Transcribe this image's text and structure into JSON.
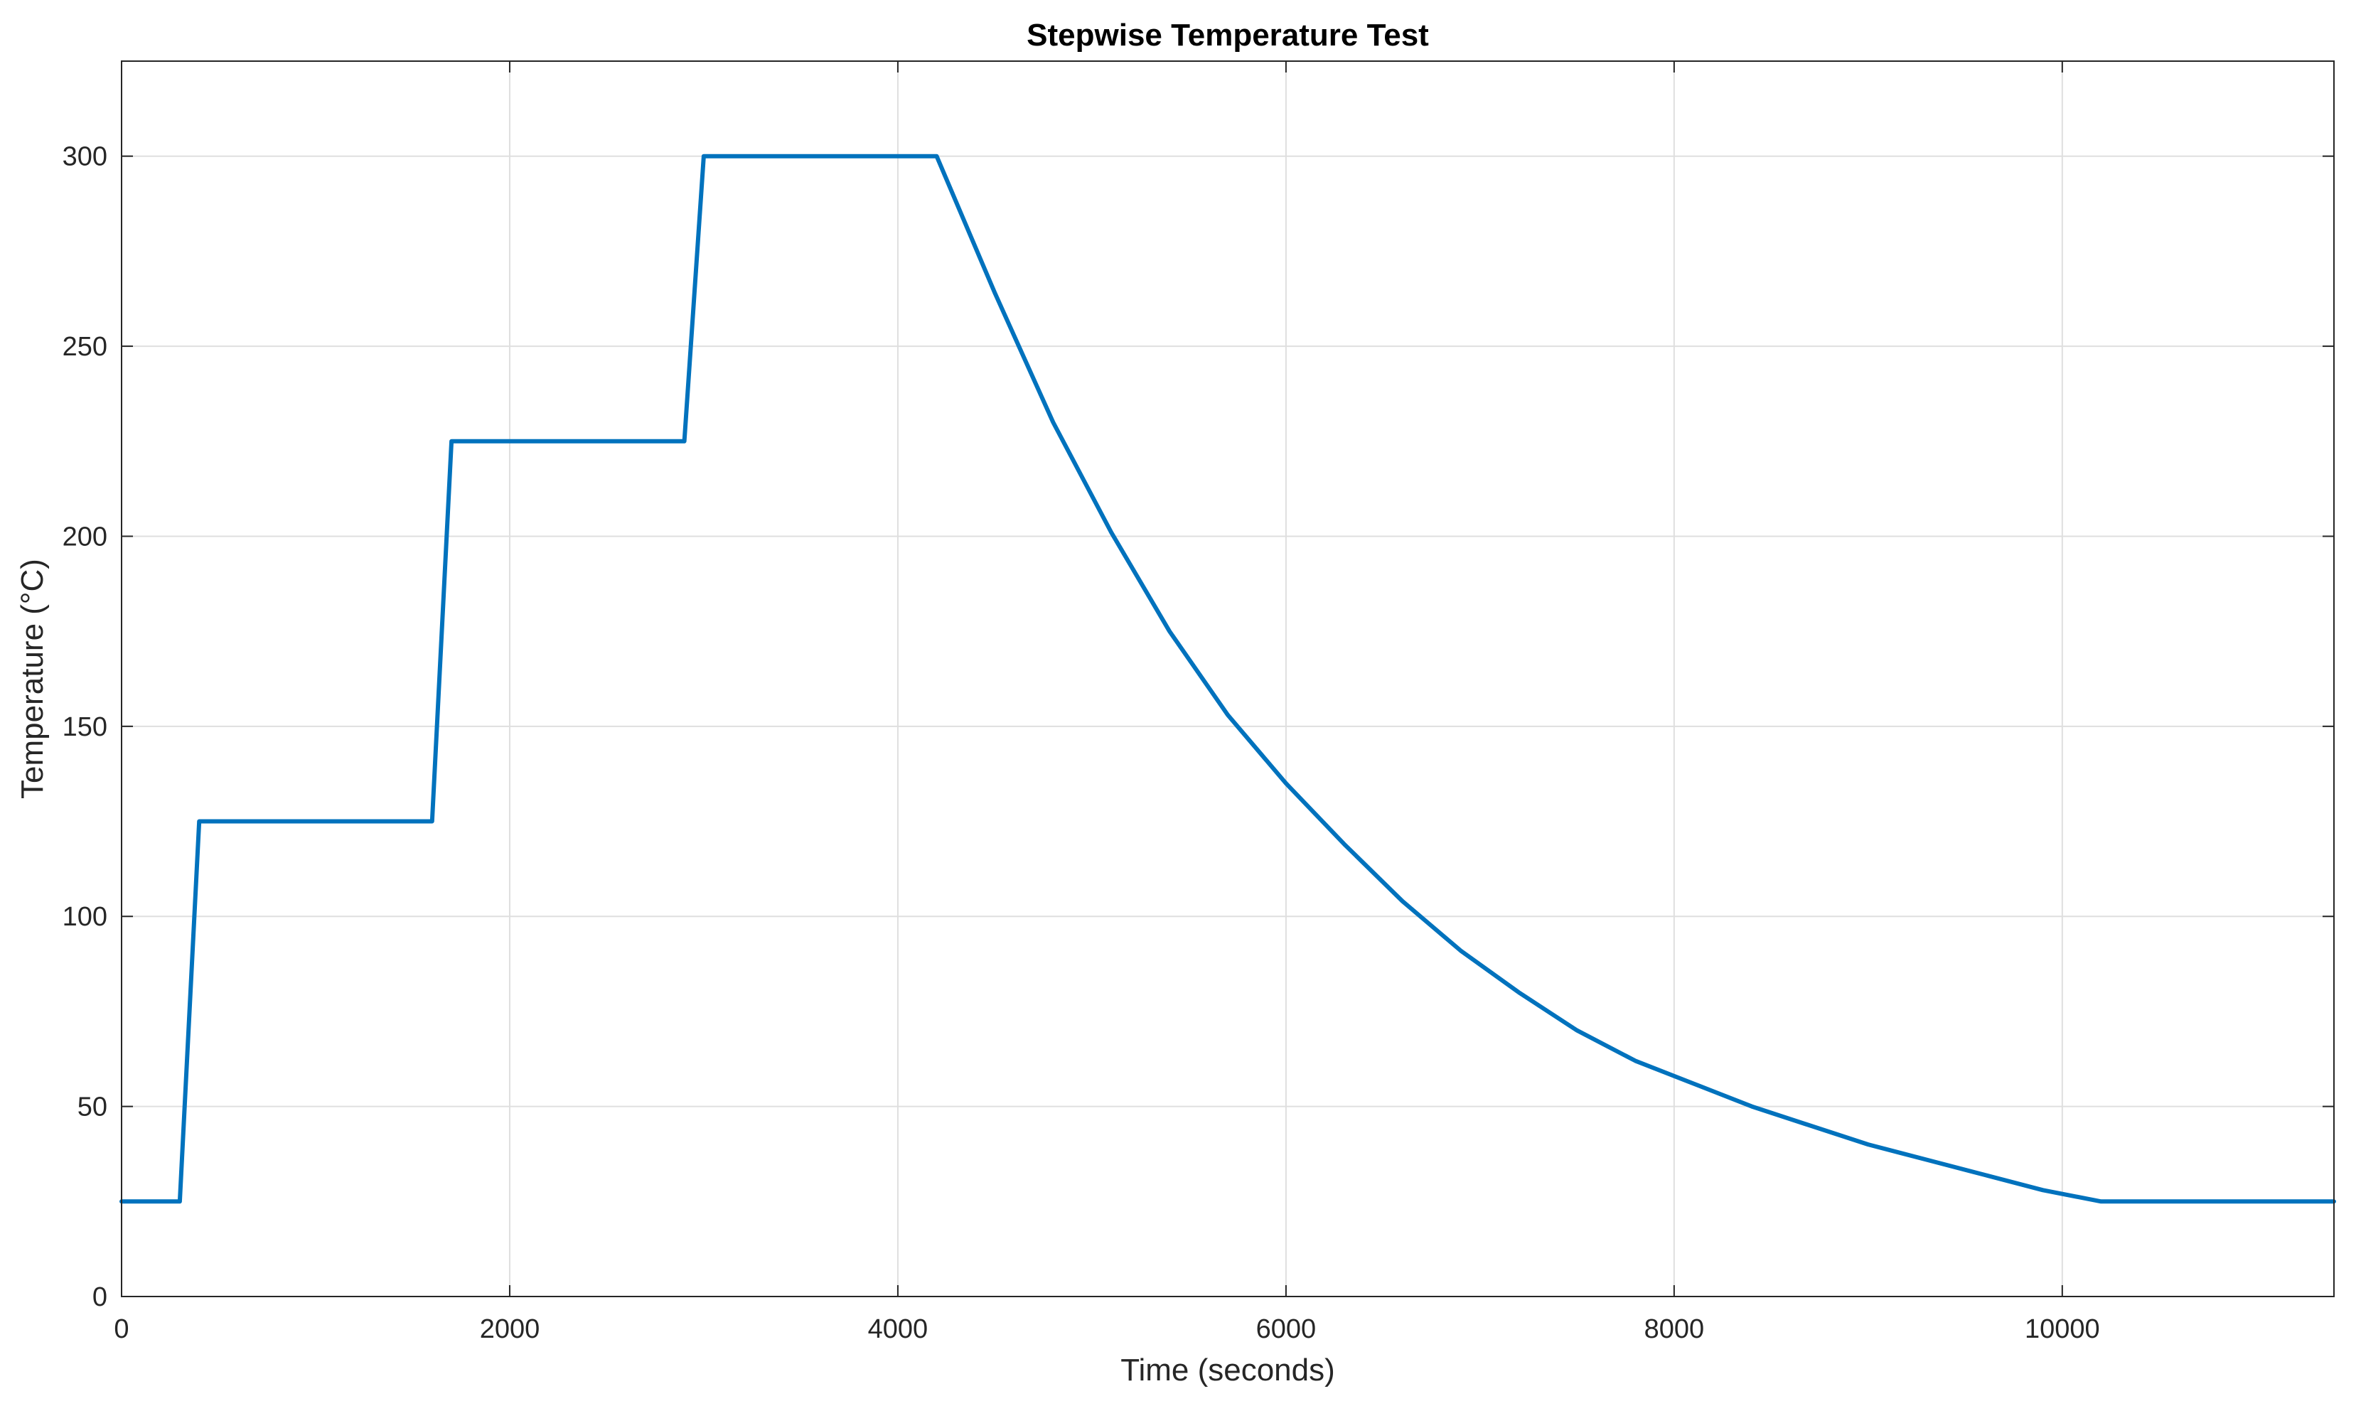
{
  "chart_data": {
    "type": "line",
    "title": "Stepwise Temperature Test",
    "xlabel": "Time (seconds)",
    "ylabel": "Temperature (°C)",
    "xlim": [
      0,
      11400
    ],
    "ylim": [
      0,
      325
    ],
    "xticks": [
      0,
      2000,
      4000,
      6000,
      8000,
      10000
    ],
    "yticks": [
      0,
      50,
      100,
      150,
      200,
      250,
      300
    ],
    "grid": true,
    "line_color": "#0072BD",
    "series": [
      {
        "x": [
          0,
          300,
          400,
          1600,
          1700,
          2900,
          3000,
          4200,
          4500,
          4800,
          5100,
          5400,
          5700,
          6000,
          6300,
          6600,
          6900,
          7200,
          7500,
          7800,
          8100,
          8400,
          8700,
          9000,
          9300,
          9600,
          9900,
          10200,
          11400
        ],
        "y": [
          25,
          25,
          125,
          125,
          225,
          225,
          300,
          300,
          264,
          230,
          201,
          175,
          153,
          135,
          119,
          104,
          91,
          80,
          70,
          62,
          56,
          50,
          45,
          40,
          36,
          32,
          28,
          25,
          25
        ]
      }
    ]
  }
}
